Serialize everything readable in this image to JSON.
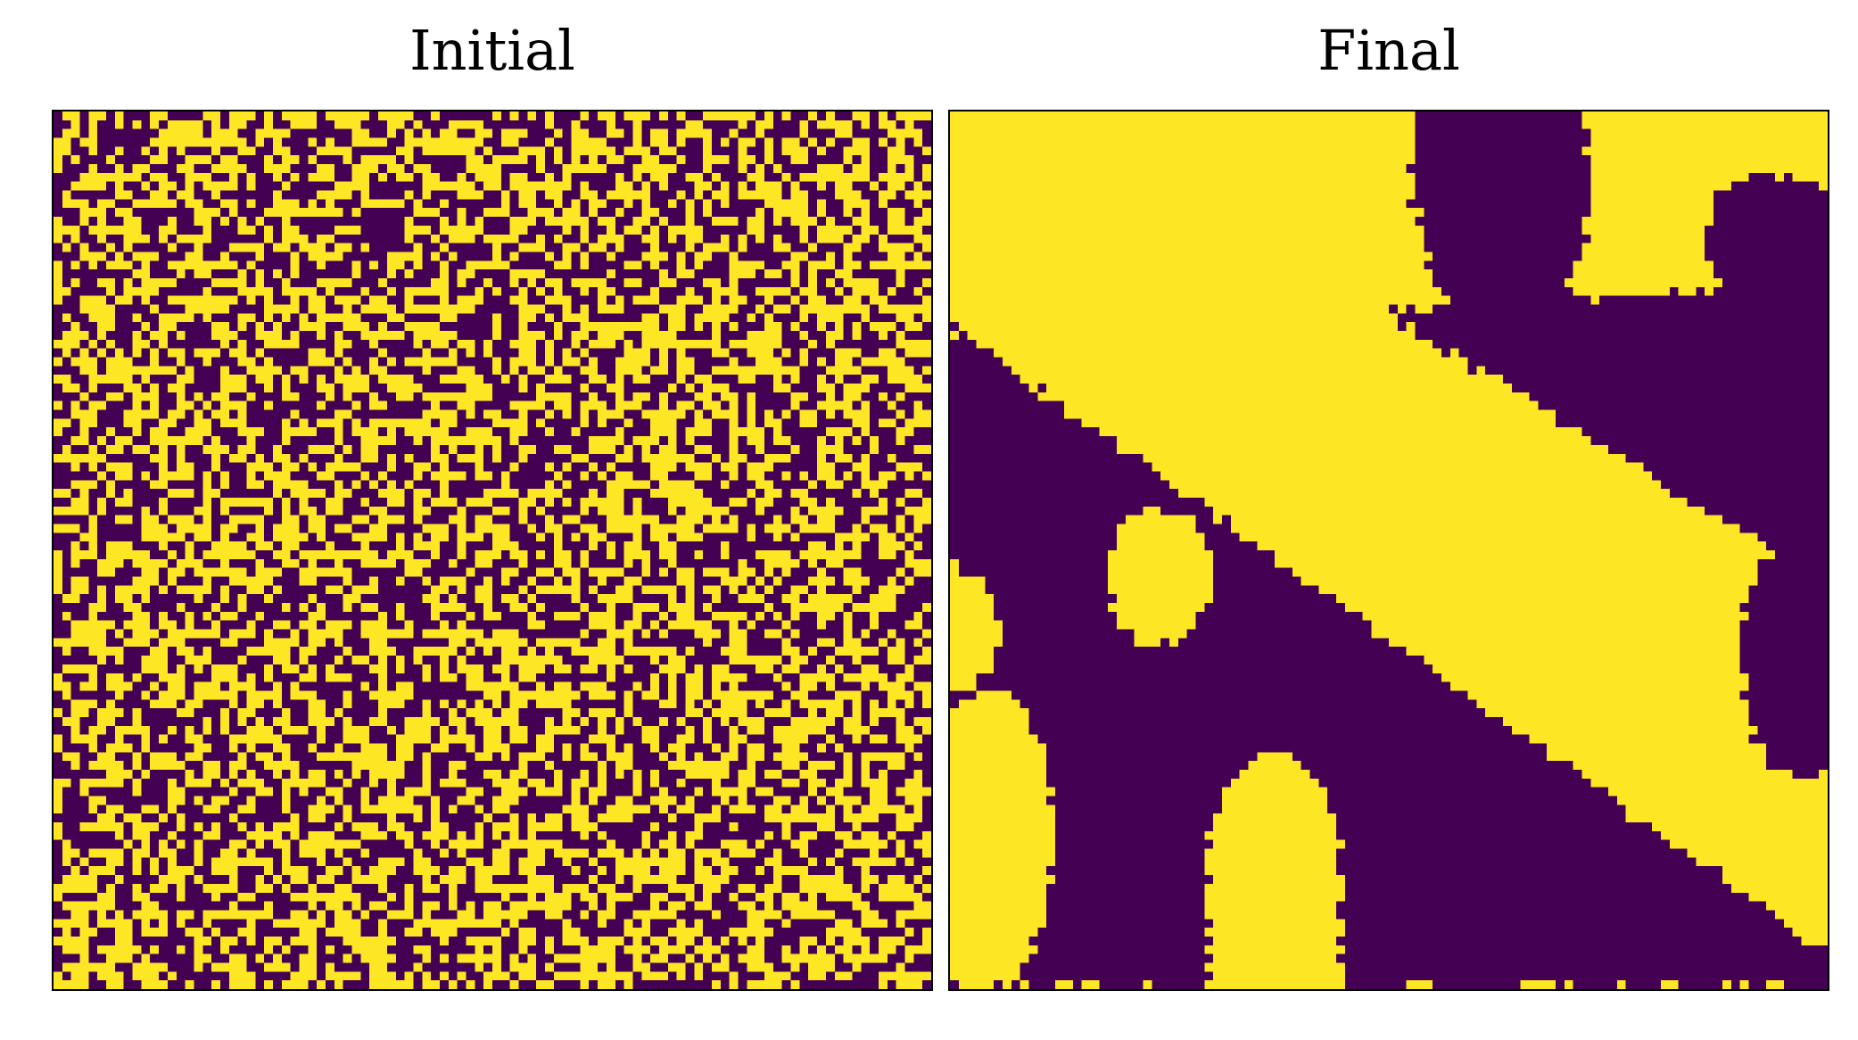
{
  "chart_data": [
    {
      "type": "heatmap",
      "title": "Initial",
      "grid_size": [
        100,
        100
      ],
      "values": [
        0,
        1
      ],
      "pattern": "random-binary",
      "colors": {
        "0": "#440154",
        "1": "#fde725"
      },
      "axes_visible": false
    },
    {
      "type": "heatmap",
      "title": "Final",
      "grid_size": [
        100,
        100
      ],
      "values": [
        0,
        1
      ],
      "pattern": "coarsened-domains",
      "colors": {
        "0": "#440154",
        "1": "#fde725"
      },
      "axes_visible": false
    }
  ]
}
